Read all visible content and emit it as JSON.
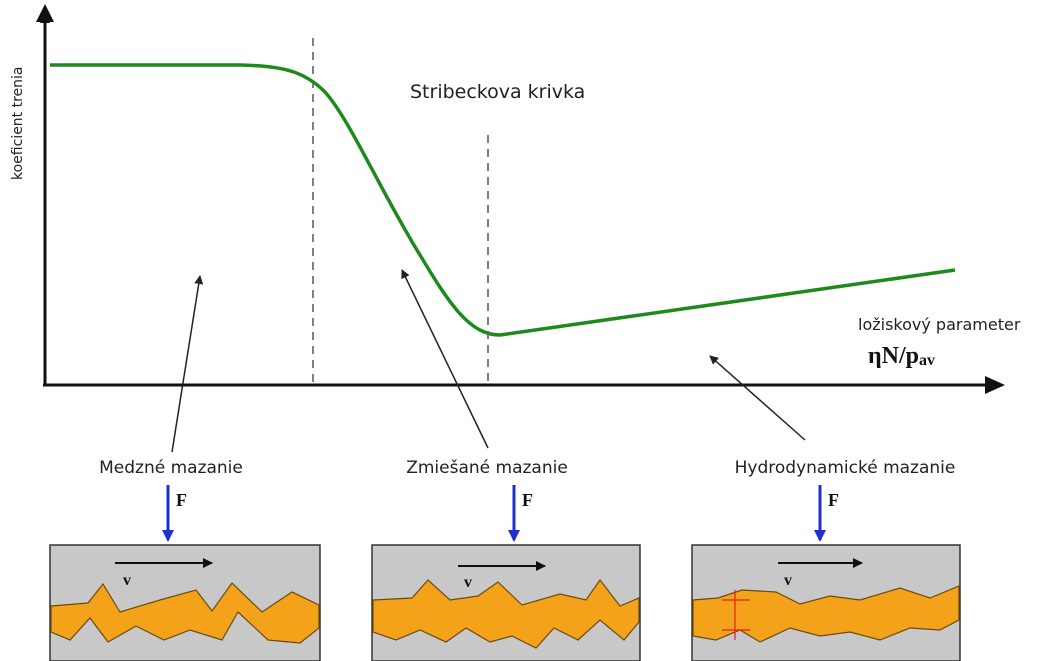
{
  "axes": {
    "y_label": "koeficient trenia",
    "x_label": "ložiskový parameter",
    "x_formula": "ηN/p",
    "x_formula_subscript": "av"
  },
  "curve": {
    "label": "Stribeckova krivka"
  },
  "regimes": [
    {
      "label": "Medzné mazanie",
      "force": "F",
      "velocity": "v"
    },
    {
      "label": "Zmiešané mazanie",
      "force": "F",
      "velocity": "v"
    },
    {
      "label": "Hydrodynamické mazanie",
      "force": "F",
      "velocity": "v"
    }
  ]
}
